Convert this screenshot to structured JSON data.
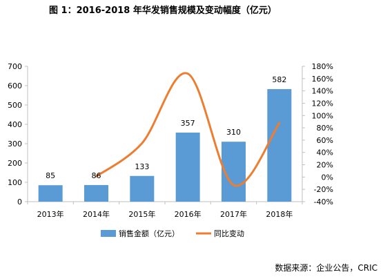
{
  "title": "图 1：2016-2018 年华发销售规模及变动幅度（亿元）",
  "source": "数据来源：企业公告，CRIC",
  "colors": {
    "bar": "#5B9BD5",
    "line": "#ED7D31",
    "axis": "#BFBFBF"
  },
  "chart_data": {
    "type": "bar+line",
    "categories": [
      "2013年",
      "2014年",
      "2015年",
      "2016年",
      "2017年",
      "2018年"
    ],
    "series": [
      {
        "name": "销售金额（亿元）",
        "type": "bar",
        "axis": "left",
        "values": [
          85,
          86,
          133,
          357,
          310,
          582
        ]
      },
      {
        "name": "同比变动",
        "type": "line",
        "axis": "right",
        "smooth": true,
        "values": [
          null,
          0.01,
          0.55,
          1.68,
          -0.13,
          0.88
        ]
      }
    ],
    "data_labels": [
      "85",
      "86",
      "133",
      "357",
      "310",
      "582"
    ],
    "y_left": {
      "min": 0,
      "max": 700,
      "ticks": [
        0,
        100,
        200,
        300,
        400,
        500,
        600,
        700
      ],
      "labels": [
        "0",
        "100",
        "200",
        "300",
        "400",
        "500",
        "600",
        "700"
      ]
    },
    "y_right": {
      "min": -0.4,
      "max": 1.8,
      "ticks": [
        -0.4,
        -0.2,
        0,
        0.2,
        0.4,
        0.6,
        0.8,
        1.0,
        1.2,
        1.4,
        1.6,
        1.8
      ],
      "labels": [
        "-40%",
        "-20%",
        "0%",
        "20%",
        "40%",
        "60%",
        "80%",
        "100%",
        "120%",
        "140%",
        "160%",
        "180%"
      ]
    },
    "legend_position": "bottom",
    "grid": false
  }
}
